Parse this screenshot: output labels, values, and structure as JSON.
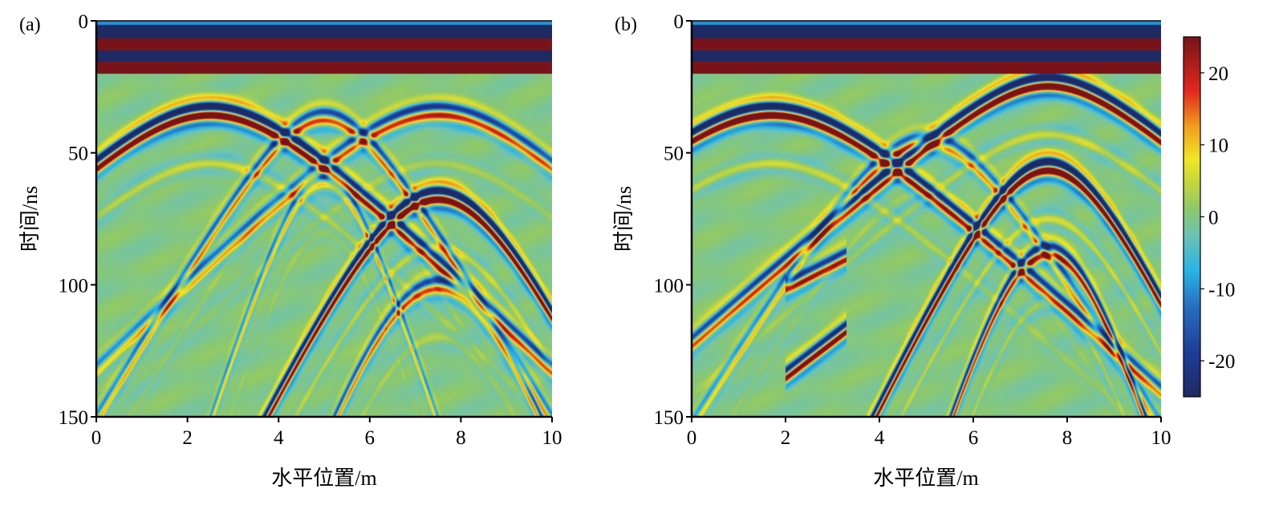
{
  "chart_data": [
    {
      "type": "heatmap",
      "panel_label": "(a)",
      "title": "",
      "xlabel": "水平位置/m",
      "ylabel": "时间/ns",
      "xlim": [
        0,
        10
      ],
      "ylim": [
        0,
        150
      ],
      "y_inverted": true,
      "xticks": [
        0,
        2,
        4,
        6,
        8,
        10
      ],
      "yticks": [
        0,
        50,
        100,
        150
      ],
      "colormap": "jet",
      "direct_wave_bands": [
        {
          "t_start": 0,
          "t_end": 1.5,
          "value": -10
        },
        {
          "t_start": 1.5,
          "t_end": 6.5,
          "value": -25
        },
        {
          "t_start": 6.5,
          "t_end": 11,
          "value": 25
        },
        {
          "t_start": 11,
          "t_end": 15.5,
          "value": -25
        },
        {
          "t_start": 15.5,
          "t_end": 20,
          "value": 25
        }
      ],
      "hyperbolas": [
        {
          "apex_x": 2.5,
          "apex_t": 34,
          "width": 2.6,
          "amp": 25
        },
        {
          "apex_x": 5.0,
          "apex_t": 36,
          "width": 1.6,
          "amp": 12
        },
        {
          "apex_x": 7.5,
          "apex_t": 34,
          "width": 2.6,
          "amp": 14
        },
        {
          "apex_x": 7.5,
          "apex_t": 66,
          "width": 2.4,
          "amp": 25
        },
        {
          "apex_x": 7.5,
          "apex_t": 100,
          "width": 2.6,
          "amp": 12
        },
        {
          "apex_x": 5.0,
          "apex_t": 60,
          "width": 1.4,
          "amp": 8
        }
      ]
    },
    {
      "type": "heatmap",
      "panel_label": "(b)",
      "title": "",
      "xlabel": "水平位置/m",
      "ylabel": "时间/ns",
      "xlim": [
        0,
        10
      ],
      "ylim": [
        0,
        150
      ],
      "y_inverted": true,
      "xticks": [
        0,
        2,
        4,
        6,
        8,
        10
      ],
      "yticks": [
        0,
        50,
        100,
        150
      ],
      "colormap": "jet",
      "direct_wave_bands": [
        {
          "t_start": 0,
          "t_end": 1.5,
          "value": -10
        },
        {
          "t_start": 1.5,
          "t_end": 6.5,
          "value": -25
        },
        {
          "t_start": 6.5,
          "t_end": 11,
          "value": 25
        },
        {
          "t_start": 11,
          "t_end": 15.5,
          "value": -25
        },
        {
          "t_start": 15.5,
          "t_end": 20,
          "value": 25
        }
      ],
      "hyperbolas": [
        {
          "apex_x": 1.7,
          "apex_t": 34,
          "width": 2.7,
          "amp": 25
        },
        {
          "apex_x": 7.6,
          "apex_t": 23,
          "width": 1.9,
          "amp": 25
        },
        {
          "apex_x": 7.6,
          "apex_t": 55,
          "width": 1.9,
          "amp": 25
        },
        {
          "apex_x": 7.6,
          "apex_t": 87,
          "width": 1.9,
          "amp": 16
        },
        {
          "apex_x": 5.0,
          "apex_t": 45,
          "width": 2.0,
          "amp": 10
        }
      ],
      "dipping_events": [
        {
          "x_start": 2.1,
          "t_start": 100,
          "x_end": 3.2,
          "t_end": 90,
          "amp": 18
        },
        {
          "x_start": 2.1,
          "t_start": 133,
          "x_end": 3.2,
          "t_end": 118,
          "amp": 22
        }
      ]
    }
  ],
  "colorbar": {
    "range": [
      -25,
      25
    ],
    "ticks": [
      20,
      10,
      0,
      -10,
      -20
    ],
    "tick_labels": [
      "20",
      "10",
      "0",
      "-10",
      "-20"
    ],
    "colormap": "jet"
  },
  "colors": {
    "background_green": "#8cc86a",
    "dark_blue": "#1e2c6a",
    "dark_red": "#7d1419",
    "axis": "#000000"
  }
}
